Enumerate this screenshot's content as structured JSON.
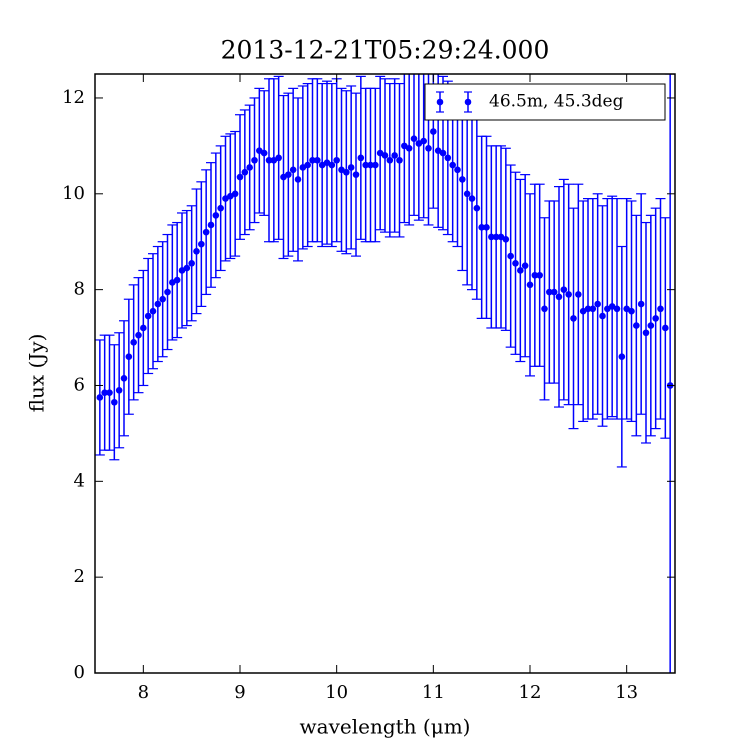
{
  "chart_data": {
    "type": "errorbar",
    "title": "2013-12-21T05:29:24.000",
    "xlabel": "wavelength (μm)",
    "ylabel": "flux (Jy)",
    "xlim": [
      7.5,
      13.5
    ],
    "ylim": [
      0,
      12.5
    ],
    "xticks": [
      8,
      9,
      10,
      11,
      12,
      13
    ],
    "yticks": [
      0,
      2,
      4,
      6,
      8,
      10,
      12
    ],
    "legend": "upper right",
    "x": [
      7.55,
      7.6,
      7.65,
      7.7,
      7.75,
      7.8,
      7.85,
      7.9,
      7.95,
      8.0,
      8.05,
      8.1,
      8.15,
      8.2,
      8.25,
      8.3,
      8.35,
      8.4,
      8.45,
      8.5,
      8.55,
      8.6,
      8.65,
      8.7,
      8.75,
      8.8,
      8.85,
      8.9,
      8.95,
      9.0,
      9.05,
      9.1,
      9.15,
      9.2,
      9.25,
      9.3,
      9.35,
      9.4,
      9.45,
      9.5,
      9.55,
      9.6,
      9.65,
      9.7,
      9.75,
      9.8,
      9.85,
      9.9,
      9.95,
      10.0,
      10.05,
      10.1,
      10.15,
      10.2,
      10.25,
      10.3,
      10.35,
      10.4,
      10.45,
      10.5,
      10.55,
      10.6,
      10.65,
      10.7,
      10.75,
      10.8,
      10.85,
      10.9,
      10.95,
      11.0,
      11.05,
      11.1,
      11.15,
      11.2,
      11.25,
      11.3,
      11.35,
      11.4,
      11.45,
      11.5,
      11.55,
      11.6,
      11.65,
      11.7,
      11.75,
      11.8,
      11.85,
      11.9,
      11.95,
      12.0,
      12.05,
      12.1,
      12.15,
      12.2,
      12.25,
      12.3,
      12.35,
      12.4,
      12.45,
      12.5,
      12.55,
      12.6,
      12.65,
      12.7,
      12.75,
      12.8,
      12.85,
      12.9,
      12.95,
      13.0,
      13.05,
      13.1,
      13.15,
      13.2,
      13.25,
      13.3,
      13.35,
      13.4,
      13.45
    ],
    "series": [
      {
        "name": "46.5m, 45.3deg",
        "color": "#0000ff",
        "values": [
          5.75,
          5.85,
          5.85,
          5.65,
          5.9,
          6.15,
          6.6,
          6.9,
          7.05,
          7.2,
          7.45,
          7.55,
          7.7,
          7.8,
          7.95,
          8.15,
          8.2,
          8.4,
          8.45,
          8.55,
          8.8,
          8.95,
          9.2,
          9.35,
          9.55,
          9.7,
          9.9,
          9.95,
          10.0,
          10.35,
          10.45,
          10.55,
          10.7,
          10.9,
          10.85,
          10.7,
          10.7,
          10.75,
          10.35,
          10.4,
          10.5,
          10.3,
          10.55,
          10.6,
          10.7,
          10.7,
          10.6,
          10.65,
          10.6,
          10.7,
          10.5,
          10.45,
          10.55,
          10.4,
          10.75,
          10.6,
          10.6,
          10.6,
          10.85,
          10.8,
          10.7,
          10.8,
          10.7,
          11.0,
          10.95,
          11.15,
          11.05,
          11.1,
          10.95,
          11.3,
          10.9,
          10.85,
          10.75,
          10.6,
          10.5,
          10.3,
          10.0,
          9.9,
          9.7,
          9.3,
          9.3,
          9.1,
          9.1,
          9.1,
          9.05,
          8.7,
          8.55,
          8.4,
          8.5,
          8.1,
          8.3,
          8.3,
          7.6,
          7.95,
          7.95,
          7.85,
          8.0,
          7.9,
          7.4,
          7.9,
          7.55,
          7.6,
          7.6,
          7.7,
          7.45,
          7.6,
          7.65,
          7.6,
          6.6,
          7.6,
          7.55,
          7.25,
          7.7,
          7.1,
          7.25,
          7.4,
          7.6,
          7.2,
          6.0
        ],
        "errors": [
          1.2,
          1.2,
          1.2,
          1.2,
          1.2,
          1.2,
          1.2,
          1.2,
          1.2,
          1.2,
          1.2,
          1.2,
          1.2,
          1.2,
          1.2,
          1.2,
          1.2,
          1.2,
          1.2,
          1.2,
          1.3,
          1.3,
          1.3,
          1.3,
          1.3,
          1.3,
          1.3,
          1.3,
          1.3,
          1.3,
          1.3,
          1.3,
          1.3,
          1.3,
          1.3,
          1.7,
          1.7,
          1.7,
          1.7,
          1.7,
          1.7,
          1.7,
          1.7,
          1.7,
          1.7,
          1.7,
          1.7,
          1.7,
          1.7,
          1.7,
          1.7,
          1.7,
          1.7,
          1.7,
          1.7,
          1.6,
          1.6,
          1.6,
          1.6,
          1.6,
          1.6,
          1.6,
          1.6,
          1.6,
          1.6,
          1.6,
          1.6,
          1.6,
          1.6,
          1.6,
          1.6,
          1.6,
          1.6,
          1.6,
          1.6,
          1.9,
          1.9,
          1.9,
          1.9,
          1.9,
          1.9,
          1.9,
          1.9,
          1.9,
          1.9,
          1.9,
          1.9,
          1.9,
          1.9,
          1.9,
          1.9,
          1.9,
          1.9,
          1.9,
          1.9,
          2.3,
          2.3,
          2.3,
          2.3,
          2.3,
          2.3,
          2.3,
          2.3,
          2.3,
          2.3,
          2.3,
          2.3,
          2.3,
          2.3,
          2.3,
          2.3,
          2.3,
          2.3,
          2.3,
          2.3,
          2.3,
          2.3,
          2.3,
          6.5
        ]
      }
    ]
  }
}
